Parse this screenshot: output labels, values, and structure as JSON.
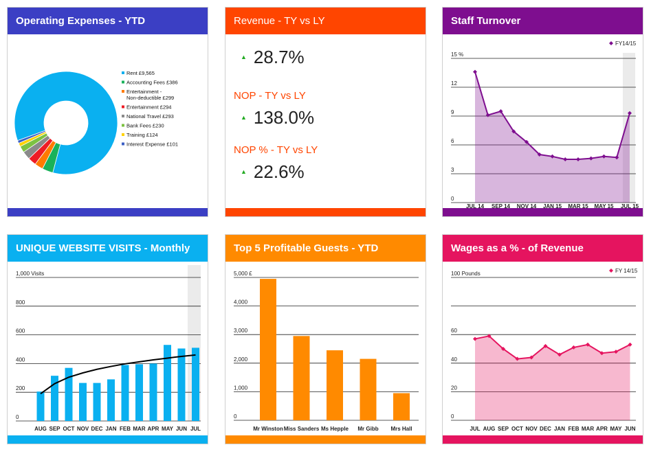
{
  "colors": {
    "blue_header": "#3b3fc4",
    "orange_red": "#ff4500",
    "purple": "#7e0e8f",
    "sky": "#0ab0f0",
    "orange": "#ff8a00",
    "pink": "#e5145f"
  },
  "opex": {
    "title": "Operating Expenses - YTD",
    "chart_data": {
      "type": "pie",
      "categories": [
        "Rent £9,565",
        "Accounting Fees £386",
        "Entertainment - Non-deductible £299",
        "Entertainment £294",
        "National Travel £293",
        "Bank Fees £230",
        "Training £124",
        "Interest Expense £101"
      ],
      "values": [
        9565,
        386,
        299,
        294,
        293,
        230,
        124,
        101
      ],
      "colors": [
        "#0ab0f0",
        "#19b25a",
        "#ff7a00",
        "#ee1c25",
        "#8a8a8a",
        "#7cc242",
        "#ffd200",
        "#3b5fc4"
      ],
      "legend_lines": [
        [
          "Rent £9,565"
        ],
        [
          "Accounting Fees £386"
        ],
        [
          "Entertainment -",
          "Non-deductible £299"
        ],
        [
          "Entertainment £294"
        ],
        [
          "National Travel £293"
        ],
        [
          "Bank Fees £230"
        ],
        [
          "Training £124"
        ],
        [
          "Interest Expense £101"
        ]
      ],
      "legend": "right"
    }
  },
  "revenue": {
    "title": "Revenue - TY vs LY",
    "value": "28.7%",
    "nop_title": "NOP - TY vs LY",
    "nop_value": "138.0%",
    "nop_pct_title": "NOP % - TY vs LY",
    "nop_pct_value": "22.6%",
    "arrow": "▲"
  },
  "staff": {
    "title": "Staff Turnover",
    "chart_data": {
      "type": "area",
      "x": [
        "JUL 14",
        "AUG 14",
        "SEP 14",
        "OCT 14",
        "NOV 14",
        "DEC 14",
        "JAN 15",
        "FEB 15",
        "MAR 15",
        "APR 15",
        "MAY 15",
        "JUN 15",
        "JUL 15"
      ],
      "xticks": [
        "JUL 14",
        "SEP 14",
        "NOV 14",
        "JAN 15",
        "MAR 15",
        "MAY 15",
        "JUL 15"
      ],
      "series": [
        {
          "name": "FY14/15",
          "values": [
            13.6,
            9.1,
            9.5,
            7.4,
            6.3,
            5.0,
            4.8,
            4.5,
            4.5,
            4.6,
            4.8,
            4.7,
            9.3
          ]
        }
      ],
      "yticks": [
        "0",
        "3",
        "6",
        "9",
        "12",
        "15 %"
      ],
      "ylim": [
        0,
        15
      ],
      "grid": true,
      "legend": "top-right"
    }
  },
  "visits": {
    "title": "UNIQUE WEBSITE VISITS - Monthly",
    "chart_data": {
      "type": "bar",
      "categories": [
        "AUG",
        "SEP",
        "OCT",
        "NOV",
        "DEC",
        "JAN",
        "FEB",
        "MAR",
        "APR",
        "MAY",
        "JUN",
        "JUL"
      ],
      "values": [
        205,
        315,
        370,
        265,
        265,
        290,
        390,
        395,
        400,
        530,
        505,
        510
      ],
      "trend": [
        190,
        260,
        305,
        335,
        360,
        380,
        398,
        412,
        426,
        438,
        450,
        460
      ],
      "yticks": [
        "0",
        "200",
        "400",
        "600",
        "800",
        "1,000 Visits"
      ],
      "ylim": [
        0,
        1000
      ],
      "grid": true
    }
  },
  "guests": {
    "title": "Top 5 Profitable Guests - YTD",
    "chart_data": {
      "type": "bar",
      "categories": [
        "Mr Winston",
        "Miss Sanders",
        "Ms Hepple",
        "Mr Gibb",
        "Mrs Hall"
      ],
      "values": [
        4950,
        2950,
        2450,
        2150,
        950
      ],
      "yticks": [
        "0",
        "1,000",
        "2,000",
        "3,000",
        "4,000",
        "5,000 £"
      ],
      "ylim": [
        0,
        5000
      ],
      "grid": true
    }
  },
  "wages": {
    "title": "Wages as a % - of Revenue",
    "chart_data": {
      "type": "area",
      "categories": [
        "JUL",
        "AUG",
        "SEP",
        "OCT",
        "NOV",
        "DEC",
        "JAN",
        "FEB",
        "MAR",
        "APR",
        "MAY",
        "JUN"
      ],
      "series": [
        {
          "name": "FY 14/15",
          "values": [
            57,
            59,
            50,
            43,
            44,
            52,
            46,
            51,
            53,
            47,
            48,
            53
          ]
        }
      ],
      "yticks": [
        "0",
        "20",
        "40",
        "60",
        "100 Pounds"
      ],
      "ylim": [
        0,
        100
      ],
      "grid": true,
      "legend": "top-right"
    }
  }
}
